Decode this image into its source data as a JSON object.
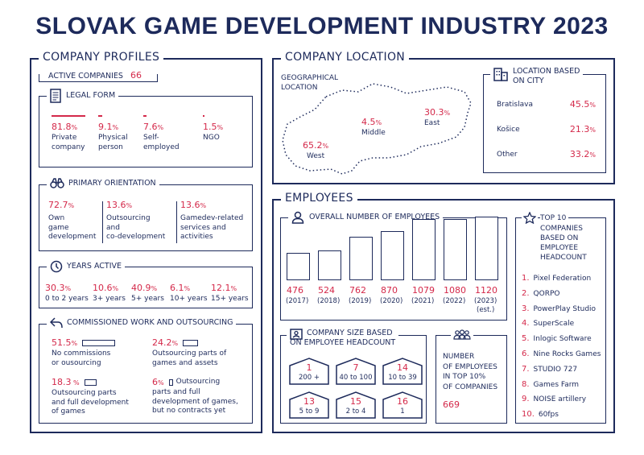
{
  "title": "SLOVAK GAME DEVELOPMENT INDUSTRY 2023",
  "colors": {
    "navy": "#1d2a5b",
    "red": "#d4294a"
  },
  "profiles": {
    "title": "COMPANY PROFILES",
    "active_label": "ACTIVE COMPANIES",
    "active_value": "66",
    "legal": {
      "title": "LEGAL FORM",
      "items": [
        {
          "value": "81.8",
          "share": 0.818,
          "label1": "Private",
          "label2": "company"
        },
        {
          "value": "9.1",
          "share": 0.091,
          "label1": "Physical",
          "label2": "person"
        },
        {
          "value": "7.6",
          "share": 0.076,
          "label1": "Self-",
          "label2": "employed"
        },
        {
          "value": "1.5",
          "share": 0.015,
          "label1": "NGO",
          "label2": ""
        }
      ]
    },
    "orientation": {
      "title": "PRIMARY ORIENTATION",
      "items": [
        {
          "value": "72.7",
          "l1": "Own",
          "l2": "game",
          "l3": "development"
        },
        {
          "value": "13.6",
          "l1": "Outsourcing",
          "l2": "and",
          "l3": "co-development"
        },
        {
          "value": "13.6",
          "l1": "Gamedev-related",
          "l2": "services and",
          "l3": "activities"
        }
      ]
    },
    "years": {
      "title": "YEARS ACTIVE",
      "items": [
        {
          "value": "30.3",
          "label": "0 to 2 years"
        },
        {
          "value": "10.6",
          "label": "3+ years"
        },
        {
          "value": "40.9",
          "label": "5+ years"
        },
        {
          "value": "6.1",
          "label": "10+ years"
        },
        {
          "value": "12.1",
          "label": "15+ years"
        }
      ]
    },
    "commissioned": {
      "title": "COMMISSIONED WORK AND OUTSOURCING",
      "items": [
        {
          "value": "51.5",
          "pct": "%",
          "share": 0.515,
          "l1": "No commissions",
          "l2": "or ousourcing",
          "l3": ""
        },
        {
          "value": "24.2",
          "pct": "%",
          "share": 0.242,
          "l1": "Outsourcing parts of",
          "l2": "games and assets",
          "l3": ""
        },
        {
          "value": "18.3",
          "pct": " %",
          "share": 0.183,
          "l1": "Outsourcing parts",
          "l2": "and full development",
          "l3": "of games"
        },
        {
          "value": "6",
          "pct": "%",
          "share": 0.06,
          "l1": "Outsourcing",
          "l2": "parts and full",
          "l3": "development of games,",
          "l4": "but no contracts yet"
        }
      ]
    }
  },
  "location": {
    "title": "COMPANY LOCATION",
    "geo_label1": "GEOGRAPHICAL",
    "geo_label2": "LOCATION",
    "regions": [
      {
        "value": "65.2",
        "name": "West"
      },
      {
        "value": "4.5",
        "name": "Middle"
      },
      {
        "value": "30.3",
        "name": "East"
      }
    ],
    "city": {
      "title1": "LOCATION BASED",
      "title2": "ON CITY",
      "items": [
        {
          "name": "Bratislava",
          "value": "45.5"
        },
        {
          "name": "Košice",
          "value": "21.3"
        },
        {
          "name": "Other",
          "value": "33.2"
        }
      ]
    }
  },
  "employees": {
    "title": "EMPLOYEES",
    "overall": {
      "title": "OVERALL NUMBER OF EMPLOYEES",
      "bars": [
        {
          "value": "476",
          "year": "(2017)",
          "n": 476
        },
        {
          "value": "524",
          "year": "(2018)",
          "n": 524
        },
        {
          "value": "762",
          "year": "(2019)",
          "n": 762
        },
        {
          "value": "870",
          "year": "(2020)",
          "n": 870
        },
        {
          "value": "1079",
          "year": "(2021)",
          "n": 1079
        },
        {
          "value": "1080",
          "year": "(2022)",
          "n": 1080
        },
        {
          "value": "1120",
          "year": "(2023)",
          "year2": "(est.)",
          "n": 1120
        }
      ]
    },
    "size": {
      "title1": "COMPANY SIZE BASED",
      "title2": "ON EMPLOYEE HEADCOUNT",
      "items": [
        {
          "count": "1",
          "range": "200 +"
        },
        {
          "count": "7",
          "range": "40 to 100"
        },
        {
          "count": "14",
          "range": "10 to 39"
        },
        {
          "count": "13",
          "range": "5 to 9"
        },
        {
          "count": "15",
          "range": "2 to 4"
        },
        {
          "count": "16",
          "range": "1"
        }
      ]
    },
    "top_share": {
      "l1": "NUMBER",
      "l2": "OF EMPLOYEES",
      "l3": "IN TOP 10%",
      "l4": "OF COMPANIES",
      "value": "669"
    },
    "top10": {
      "t1": "TOP 10",
      "t2": "COMPANIES",
      "t3": "BASED ON",
      "t4": "EMPLOYEE",
      "t5": "HEADCOUNT",
      "items": [
        {
          "n": "1.",
          "name": "Pixel Federation"
        },
        {
          "n": "2.",
          "name": "QORPO"
        },
        {
          "n": "3.",
          "name": "PowerPlay Studio"
        },
        {
          "n": "4.",
          "name": "SuperScale"
        },
        {
          "n": "5.",
          "name": "Inlogic Software"
        },
        {
          "n": "6.",
          "name": "Nine Rocks Games"
        },
        {
          "n": "7.",
          "name": "STUDIO 727"
        },
        {
          "n": "8.",
          "name": "Games Farm"
        },
        {
          "n": "9.",
          "name": "NOISE artillery"
        },
        {
          "n": "10.",
          "name": "60fps"
        }
      ]
    }
  },
  "pct": "%"
}
